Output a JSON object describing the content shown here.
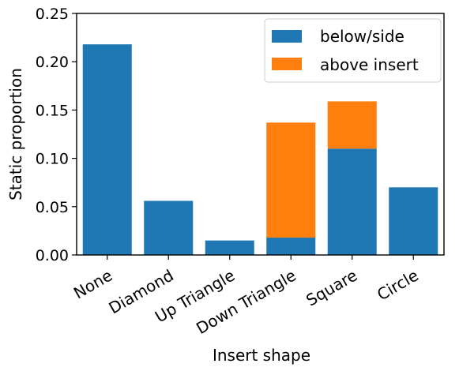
{
  "chart_data": {
    "type": "bar",
    "stacked": true,
    "xlabel": "Insert shape",
    "ylabel": "Static proportion",
    "ylim": [
      0,
      0.25
    ],
    "yticks": [
      "0.00",
      "0.05",
      "0.10",
      "0.15",
      "0.20",
      "0.25"
    ],
    "categories": [
      "None",
      "Diamond",
      "Up Triangle",
      "Down Triangle",
      "Square",
      "Circle"
    ],
    "series": [
      {
        "name": "below/side",
        "color": "#1f77b4",
        "values": [
          0.218,
          0.056,
          0.015,
          0.018,
          0.11,
          0.07
        ]
      },
      {
        "name": "above insert",
        "color": "#ff7f0e",
        "values": [
          0.0,
          0.0,
          0.0,
          0.119,
          0.049,
          0.0
        ]
      }
    ],
    "legend_position": "top-right",
    "grid": false
  }
}
